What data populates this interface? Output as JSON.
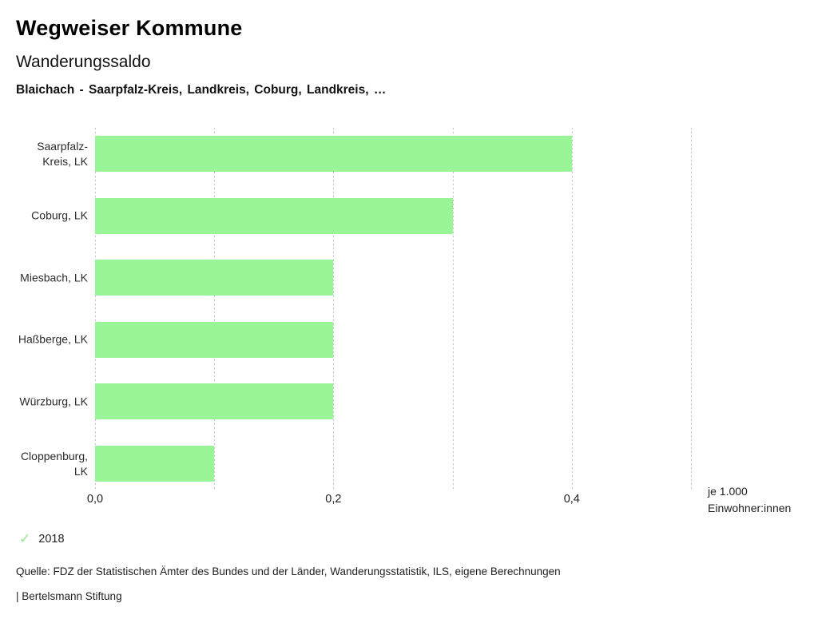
{
  "header": {
    "app_title": "Wegweiser Kommune",
    "chart_title": "Wanderungssaldo",
    "chart_subtitle": "Blaichach - Saarpfalz-Kreis, Landkreis, Coburg, Landkreis, …"
  },
  "chart_data": {
    "type": "bar",
    "orientation": "horizontal",
    "title": "Wanderungssaldo",
    "subtitle": "Blaichach - Saarpfalz-Kreis, Landkreis, Coburg, Landkreis, …",
    "categories": [
      "Saarpfalz-Kreis, LK",
      "Coburg, LK",
      "Miesbach, LK",
      "Haßberge, LK",
      "Würzburg, LK",
      "Cloppenburg, LK"
    ],
    "series": [
      {
        "name": "2018",
        "values": [
          0.4,
          0.3,
          0.2,
          0.2,
          0.2,
          0.1
        ]
      }
    ],
    "xlim": [
      0,
      0.5
    ],
    "gridline_interval": 0.1,
    "grid": true,
    "x_ticks": [
      {
        "value": 0.0,
        "label": "0,0"
      },
      {
        "value": 0.2,
        "label": "0,2"
      },
      {
        "value": 0.4,
        "label": "0,4"
      }
    ],
    "xlabel_line1": "je 1.000",
    "xlabel_line2": "Einwohner:innen",
    "legend_position": "bottom-left"
  },
  "legend": {
    "check_icon": "✓",
    "year_label": "2018"
  },
  "footer": {
    "source": "Quelle: FDZ der Statistischen Ämter des Bundes und der Länder, Wanderungsstatistik, ILS, eigene Berechnungen",
    "attribution": "| Bertelsmann Stiftung"
  },
  "colors": {
    "bar": "#99f598",
    "legend_check": "#8ee88e",
    "gridline": "#c0c0c0"
  }
}
